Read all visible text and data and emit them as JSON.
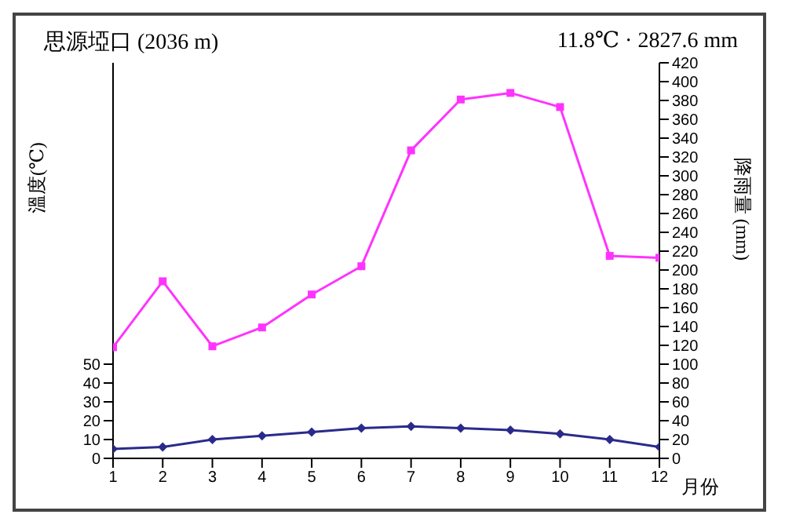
{
  "chart_data": {
    "type": "line",
    "title": "思源埡口 (2036 m)",
    "subtitle": "11.8℃ · 2827.6 mm",
    "xlabel": "月份",
    "ylabel": "溫度(℃)",
    "y2label": "降雨量 (mm)",
    "x": [
      1,
      2,
      3,
      4,
      5,
      6,
      7,
      8,
      9,
      10,
      11,
      12
    ],
    "xlim": [
      1,
      12
    ],
    "xticks": [
      1,
      2,
      3,
      4,
      5,
      6,
      7,
      8,
      9,
      10,
      11,
      12
    ],
    "ylim": [
      0,
      210
    ],
    "yticks": [
      0,
      10,
      20,
      30,
      40,
      50
    ],
    "y2lim": [
      0,
      420
    ],
    "y2ticks": [
      0,
      20,
      40,
      60,
      80,
      100,
      120,
      140,
      160,
      180,
      200,
      220,
      240,
      260,
      280,
      300,
      320,
      340,
      360,
      380,
      400,
      420
    ],
    "series": [
      {
        "color": "#ff33ff",
        "axis": "y2",
        "marker": "square",
        "values": [
          118,
          188,
          119,
          139,
          174,
          204,
          327,
          381,
          388,
          373,
          215,
          213
        ]
      },
      {
        "color": "#2a2a8c",
        "marker": "diamond",
        "values": [
          5,
          6,
          10,
          12,
          14,
          16,
          17,
          16,
          15,
          13,
          10,
          6
        ]
      }
    ]
  }
}
